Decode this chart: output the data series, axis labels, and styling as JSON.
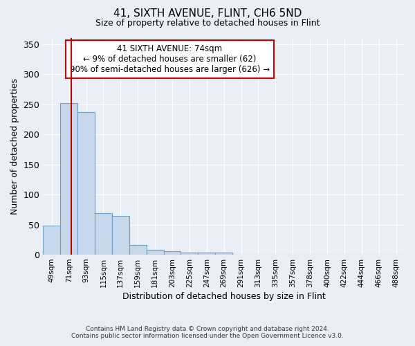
{
  "title": "41, SIXTH AVENUE, FLINT, CH6 5ND",
  "subtitle": "Size of property relative to detached houses in Flint",
  "xlabel": "Distribution of detached houses by size in Flint",
  "ylabel": "Number of detached properties",
  "footer_line1": "Contains HM Land Registry data © Crown copyright and database right 2024.",
  "footer_line2": "Contains public sector information licensed under the Open Government Licence v3.0.",
  "bin_labels": [
    "49sqm",
    "71sqm",
    "93sqm",
    "115sqm",
    "137sqm",
    "159sqm",
    "181sqm",
    "203sqm",
    "225sqm",
    "247sqm",
    "269sqm",
    "291sqm",
    "313sqm",
    "335sqm",
    "357sqm",
    "378sqm",
    "400sqm",
    "422sqm",
    "444sqm",
    "466sqm",
    "488sqm"
  ],
  "bar_values": [
    48,
    252,
    237,
    69,
    64,
    16,
    8,
    6,
    4,
    4,
    3,
    0,
    0,
    0,
    0,
    0,
    0,
    0,
    0,
    0,
    0
  ],
  "bar_color": "#c8d8ec",
  "bar_edge_color": "#6a9fc0",
  "ylim": [
    0,
    360
  ],
  "yticks": [
    0,
    50,
    100,
    150,
    200,
    250,
    300,
    350
  ],
  "red_line_x": 1.14,
  "annotation_text_line1": "41 SIXTH AVENUE: 74sqm",
  "annotation_text_line2": "← 9% of detached houses are smaller (62)",
  "annotation_text_line3": "90% of semi-detached houses are larger (626) →",
  "bg_color": "#eaeff7",
  "grid_color": "#ffffff",
  "annotation_box_color": "#ffffff",
  "annotation_box_edge": "#cc0000"
}
